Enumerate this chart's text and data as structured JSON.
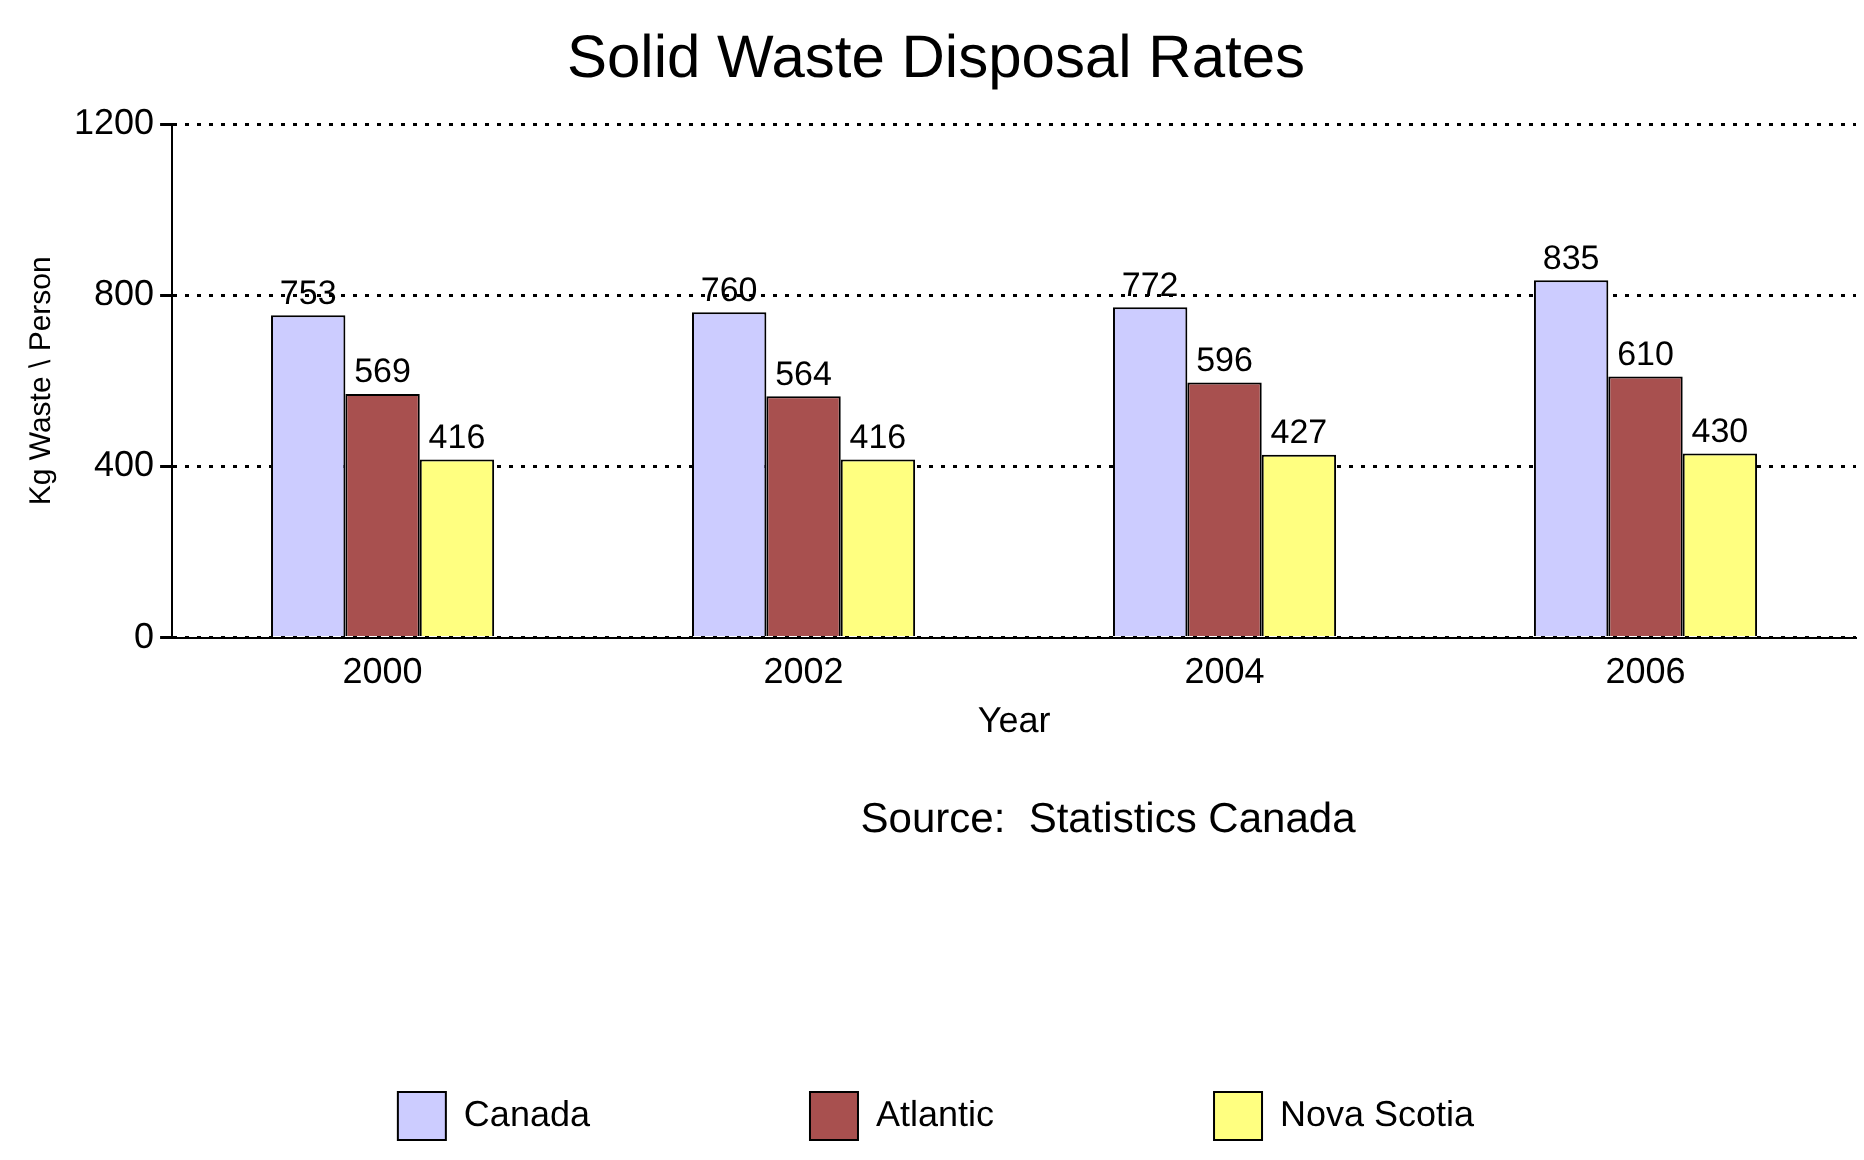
{
  "chart_data": {
    "type": "bar",
    "title": "Solid Waste Disposal Rates",
    "xlabel": "Year",
    "ylabel": "Kg Waste \\ Person",
    "categories": [
      "2000",
      "2002",
      "2004",
      "2006"
    ],
    "series": [
      {
        "name": "Canada",
        "color": "#ccccff",
        "values": [
          753,
          760,
          772,
          835
        ]
      },
      {
        "name": "Atlantic",
        "color": "#a8504f",
        "values": [
          569,
          564,
          596,
          610
        ]
      },
      {
        "name": "Nova Scotia",
        "color": "#ffff80",
        "values": [
          416,
          416,
          427,
          430
        ]
      }
    ],
    "ylim": [
      0,
      1200
    ],
    "yticks": [
      0,
      400,
      800,
      1200
    ],
    "grid": "y",
    "legend": "bottom",
    "data_labels": true,
    "annotations": [
      "Source:  Statistics Canada"
    ]
  }
}
